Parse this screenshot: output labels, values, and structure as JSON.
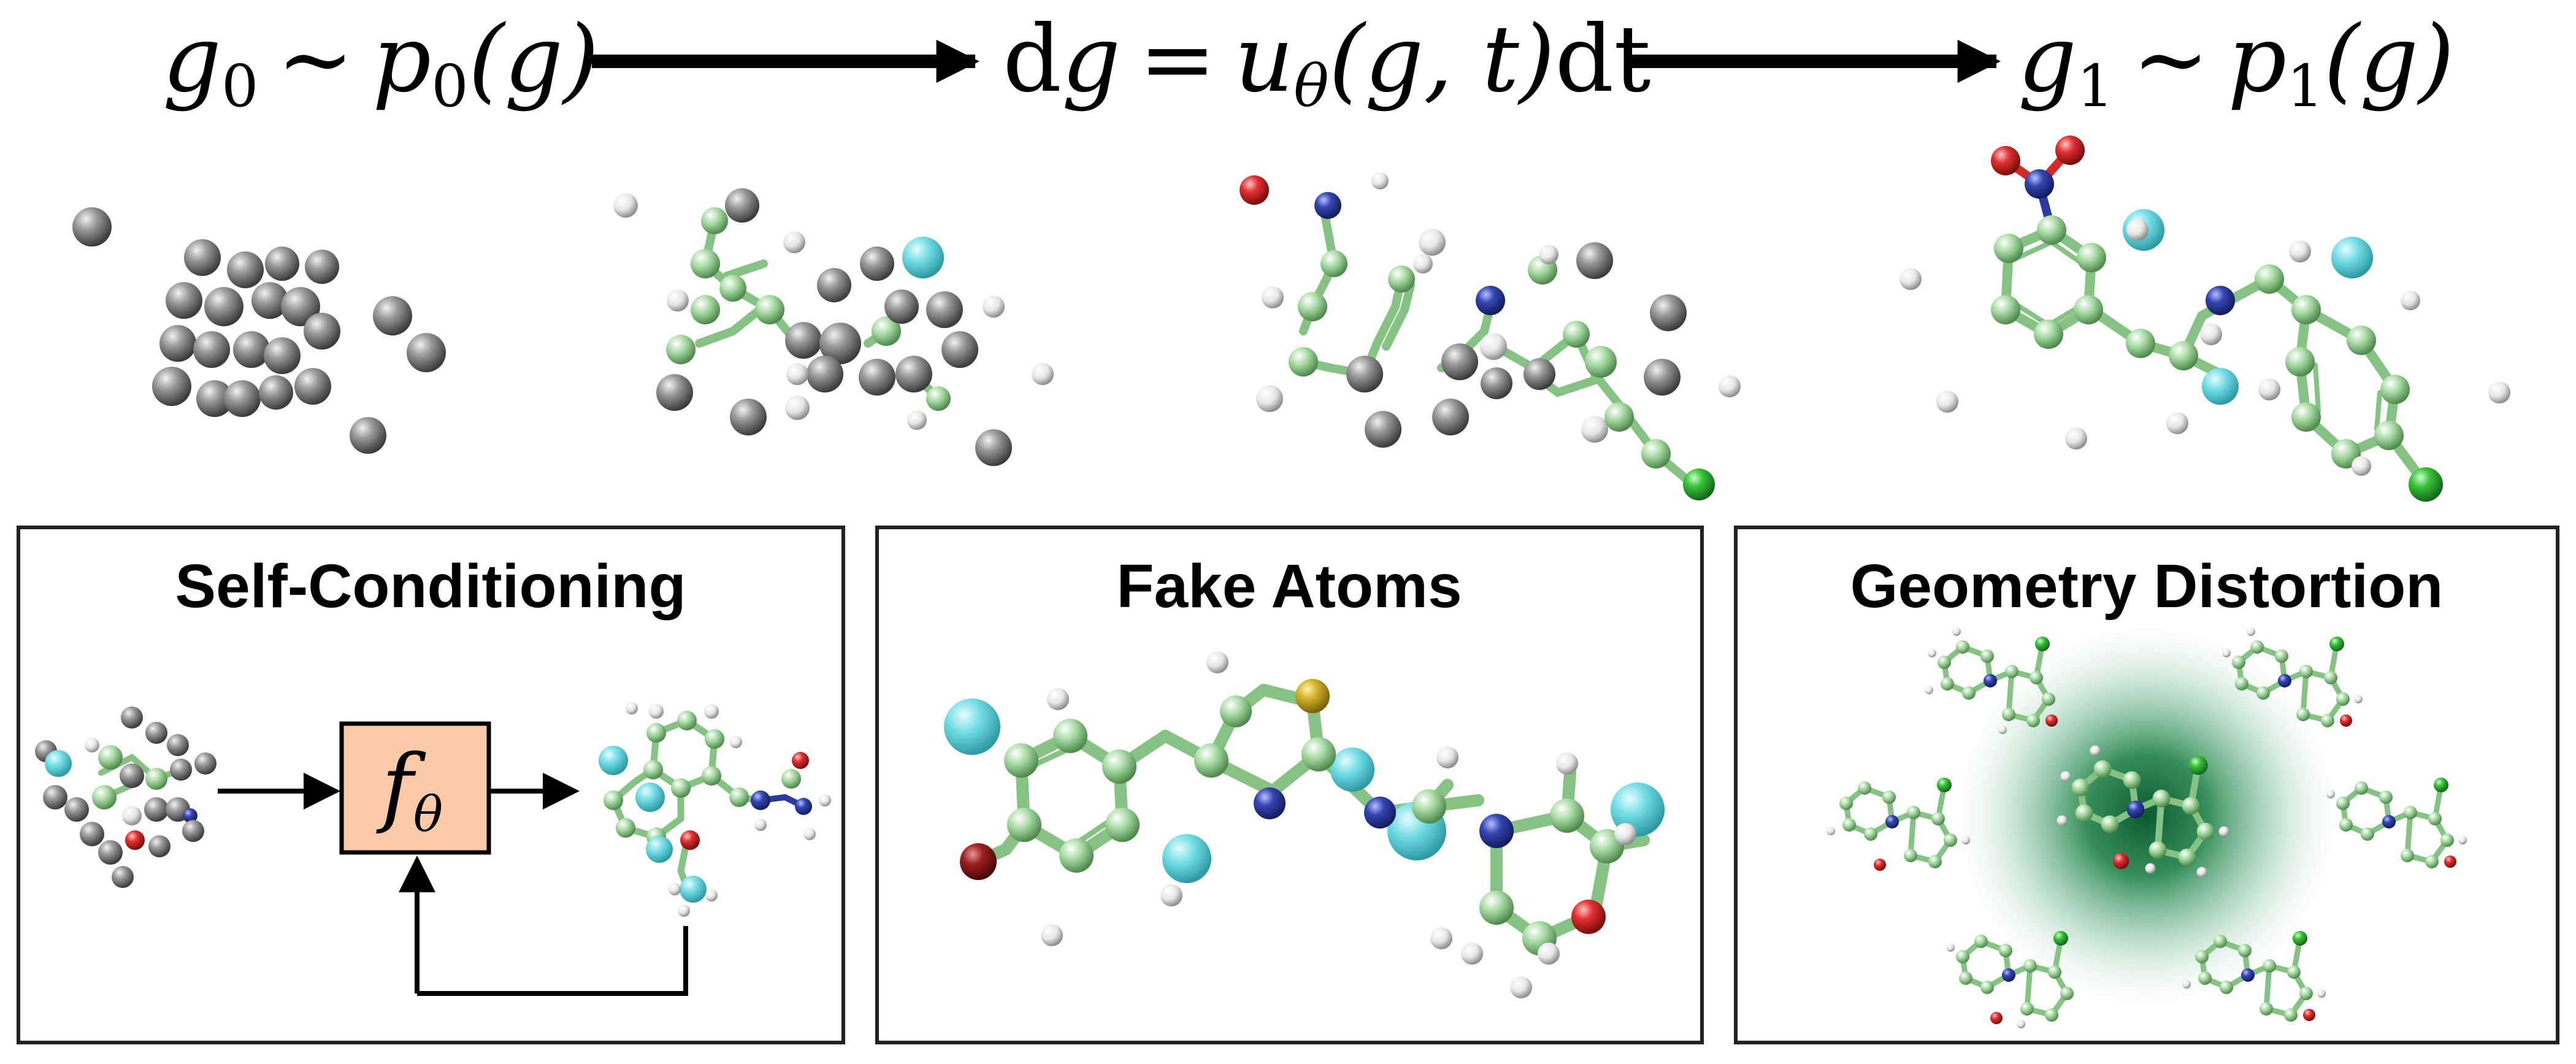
{
  "formulas": {
    "prior": {
      "var": "g",
      "sub": "0",
      "rel": "∼",
      "dist": "p",
      "dist_sub": "0",
      "arg": "(g)"
    },
    "flow": {
      "d": "d",
      "var": "g",
      "eq": "=",
      "fn": "u",
      "fn_sub": "θ",
      "args": "(g, t)",
      "dt": "dt"
    },
    "target": {
      "var": "g",
      "sub": "1",
      "rel": "∼",
      "dist": "p",
      "dist_sub": "1",
      "arg": "(g)"
    }
  },
  "panels": {
    "self_conditioning": {
      "title": "Self-Conditioning",
      "network": {
        "symbol": "f",
        "sub": "θ"
      }
    },
    "fake_atoms": {
      "title": "Fake Atoms"
    },
    "geometry_distortion": {
      "title": "Geometry Distortion"
    }
  },
  "colors": {
    "carbon_noise": "#8a8a8a",
    "carbon": "#9fd39b",
    "hydrogen": "#eeeeee",
    "nitrogen": "#2b3a9e",
    "oxygen": "#d42a2a",
    "chlorine": "#3fbf3f",
    "bromine": "#8b1a1a",
    "sulfur": "#d1b12b",
    "fake_atom": "#5fd6de",
    "network_box": "#f9c9a8",
    "halo": "#0b6e3a"
  }
}
